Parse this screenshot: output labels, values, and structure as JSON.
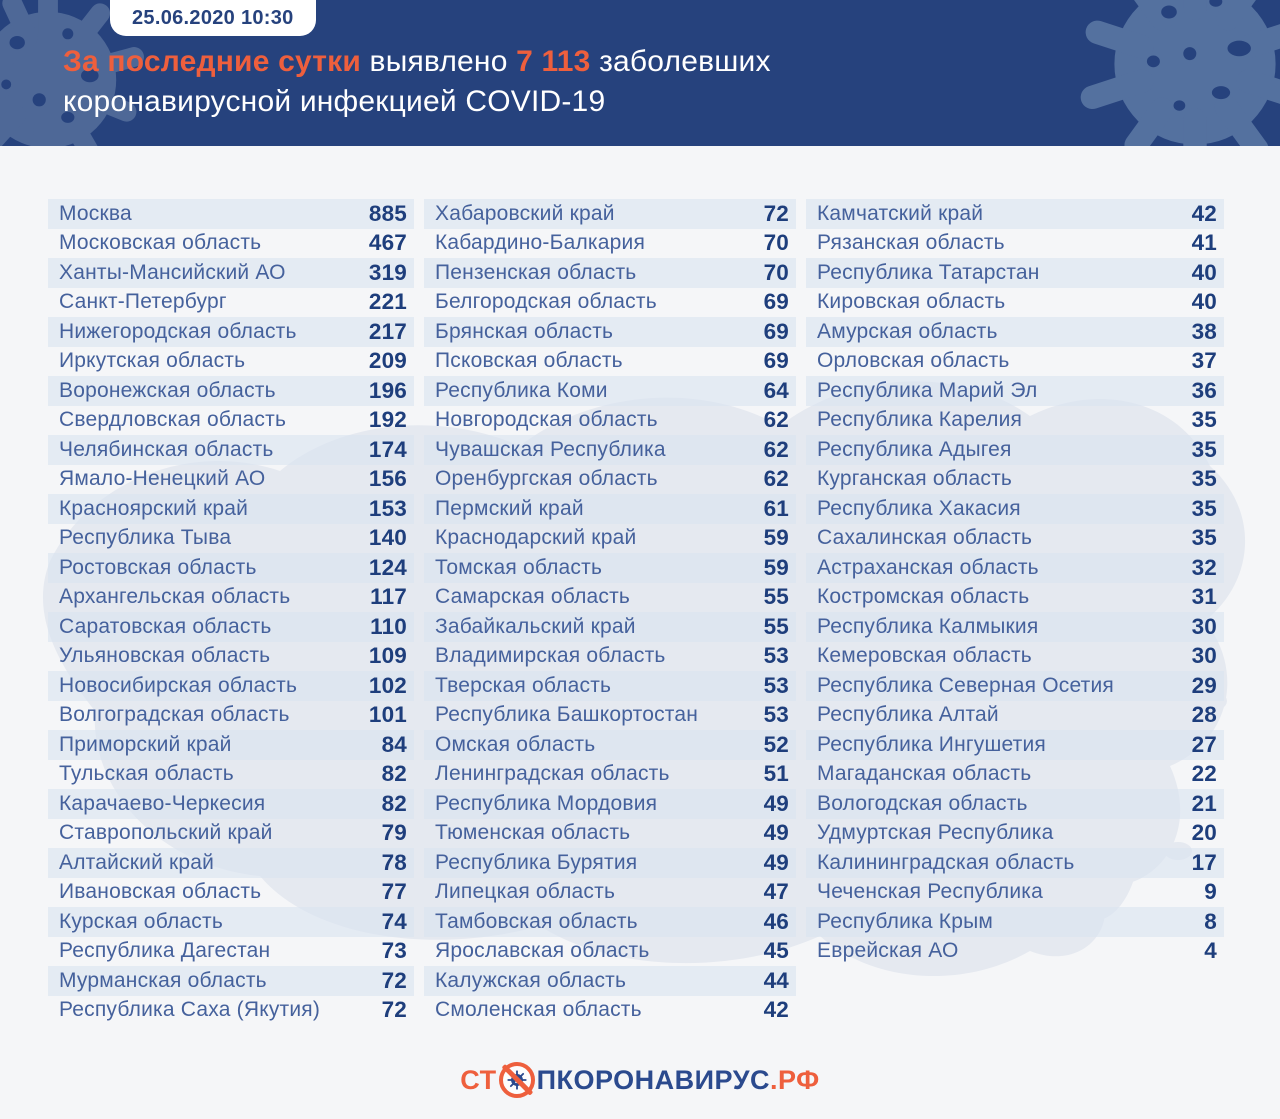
{
  "header": {
    "date_badge": "25.06.2020 10:30",
    "title": {
      "highlight1": "За последние сутки",
      "mid1": " выявлено ",
      "count": "7 113",
      "mid2": " заболевших",
      "line2": "коронавирусной инфекцией COVID-19"
    }
  },
  "footer": {
    "logo_prefix": "СТ",
    "logo_middle": "ПКОРОНАВИРУС",
    "logo_suffix": ".РФ",
    "no_virus_icon": "no-virus-icon"
  },
  "colors": {
    "header_bg": "#26427D",
    "accent_orange": "#EE5F3D",
    "region_text": "#45619C",
    "value_text": "#1E3E7C",
    "stripe": "#E7ECF4",
    "page_bg": "#F5F6F8",
    "virus_deco": "#54719F"
  },
  "chart_data": {
    "type": "table",
    "title": "За последние сутки выявлено 7 113 заболевших коронавирусной инфекцией COVID-19",
    "timestamp": "25.06.2020 10:30",
    "total_new_cases": 7113,
    "columns": [
      {
        "rows": [
          [
            "Москва",
            "885"
          ],
          [
            "Московская область",
            "467"
          ],
          [
            "Ханты-Мансийский АО",
            "319"
          ],
          [
            "Санкт-Петербург",
            "221"
          ],
          [
            "Нижегородская область",
            "217"
          ],
          [
            "Иркутская область",
            "209"
          ],
          [
            "Воронежская область",
            "196"
          ],
          [
            "Свердловская область",
            "192"
          ],
          [
            "Челябинская область",
            "174"
          ],
          [
            "Ямало-Ненецкий АО",
            "156"
          ],
          [
            "Красноярский край",
            "153"
          ],
          [
            "Республика Тыва",
            "140"
          ],
          [
            "Ростовская область",
            "124"
          ],
          [
            "Архангельская область",
            "117"
          ],
          [
            "Саратовская область",
            "110"
          ],
          [
            "Ульяновская область",
            "109"
          ],
          [
            "Новосибирская область",
            "102"
          ],
          [
            "Волгоградская область",
            "101"
          ],
          [
            "Приморский край",
            "84"
          ],
          [
            "Тульская область",
            "82"
          ],
          [
            "Карачаево-Черкесия",
            "82"
          ],
          [
            "Ставропольский край",
            "79"
          ],
          [
            "Алтайский край",
            "78"
          ],
          [
            "Ивановская область",
            "77"
          ],
          [
            "Курская область",
            "74"
          ],
          [
            "Республика Дагестан",
            "73"
          ],
          [
            "Мурманская область",
            "72"
          ],
          [
            "Республика Саха (Якутия)",
            "72"
          ]
        ]
      },
      {
        "rows": [
          [
            "Хабаровский край",
            "72"
          ],
          [
            "Кабардино-Балкария",
            "70"
          ],
          [
            "Пензенская область",
            "70"
          ],
          [
            "Белгородская область",
            "69"
          ],
          [
            "Брянская область",
            "69"
          ],
          [
            "Псковская область",
            "69"
          ],
          [
            "Республика Коми",
            "64"
          ],
          [
            "Новгородская область",
            "62"
          ],
          [
            "Чувашская Республика",
            "62"
          ],
          [
            "Оренбургская область",
            "62"
          ],
          [
            "Пермский край",
            "61"
          ],
          [
            "Краснодарский край",
            "59"
          ],
          [
            "Томская область",
            "59"
          ],
          [
            "Самарская область",
            "55"
          ],
          [
            "Забайкальский край",
            "55"
          ],
          [
            "Владимирская область",
            "53"
          ],
          [
            "Тверская область",
            "53"
          ],
          [
            "Республика Башкортостан",
            "53"
          ],
          [
            "Омская область",
            "52"
          ],
          [
            "Ленинградская область",
            "51"
          ],
          [
            "Республика Мордовия",
            "49"
          ],
          [
            "Тюменская область",
            "49"
          ],
          [
            "Республика Бурятия",
            "49"
          ],
          [
            "Липецкая область",
            "47"
          ],
          [
            "Тамбовская область",
            "46"
          ],
          [
            "Ярославская область",
            "45"
          ],
          [
            "Калужская область",
            "44"
          ],
          [
            "Смоленская область",
            "42"
          ]
        ]
      },
      {
        "rows": [
          [
            "Камчатский край",
            "42"
          ],
          [
            "Рязанская область",
            "41"
          ],
          [
            "Республика Татарстан",
            "40"
          ],
          [
            "Кировская область",
            "40"
          ],
          [
            "Амурская область",
            "38"
          ],
          [
            "Орловская область",
            "37"
          ],
          [
            "Республика Марий Эл",
            "36"
          ],
          [
            "Республика Карелия",
            "35"
          ],
          [
            "Республика Адыгея",
            "35"
          ],
          [
            "Курганская область",
            "35"
          ],
          [
            "Республика Хакасия",
            "35"
          ],
          [
            "Сахалинская область",
            "35"
          ],
          [
            "Астраханская область",
            "32"
          ],
          [
            "Костромская область",
            "31"
          ],
          [
            "Республика Калмыкия",
            "30"
          ],
          [
            "Кемеровская область",
            "30"
          ],
          [
            "Республика Северная Осетия",
            "29"
          ],
          [
            "Республика Алтай",
            "28"
          ],
          [
            "Республика Ингушетия",
            "27"
          ],
          [
            "Магаданская область",
            "22"
          ],
          [
            "Вологодская область",
            "21"
          ],
          [
            "Удмуртская Республика",
            "20"
          ],
          [
            "Калининградская область",
            "17"
          ],
          [
            "Чеченская Республика",
            "9"
          ],
          [
            "Республика Крым",
            "8"
          ],
          [
            "Еврейская АО",
            "4"
          ]
        ]
      }
    ]
  }
}
